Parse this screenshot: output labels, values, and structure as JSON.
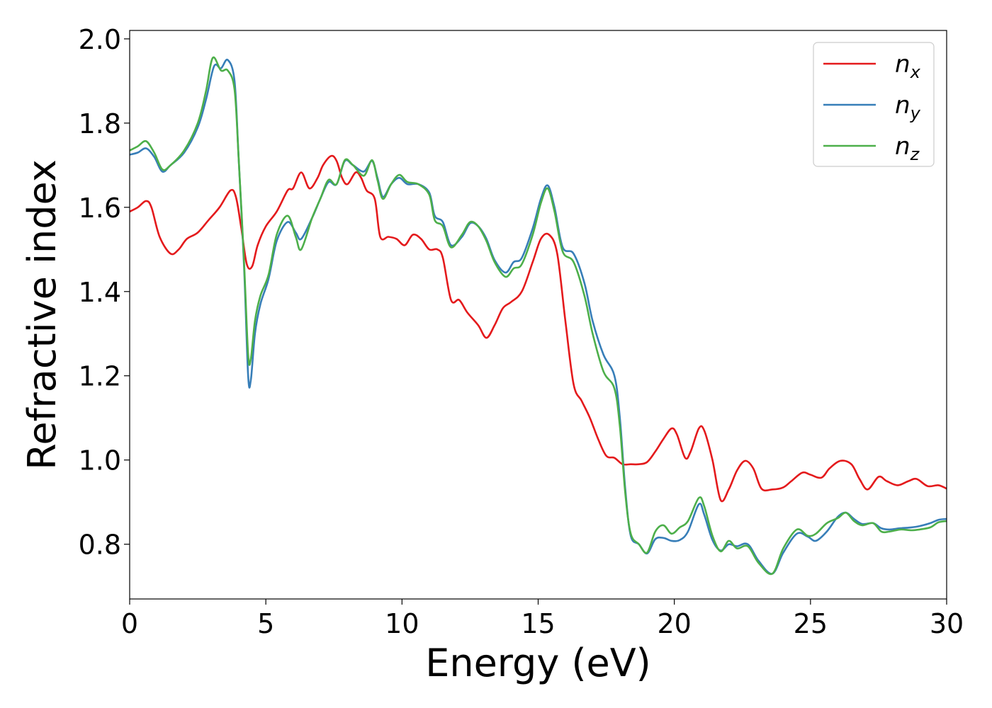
{
  "chart_data": {
    "type": "line",
    "xlabel": "Energy (eV)",
    "ylabel": "Refractive index",
    "xlim": [
      0,
      30
    ],
    "ylim": [
      0.67,
      2.02
    ],
    "xticks": [
      0,
      5,
      10,
      15,
      20,
      25,
      30
    ],
    "xtick_labels": [
      "0",
      "5",
      "10",
      "15",
      "20",
      "25",
      "30"
    ],
    "yticks": [
      0.8,
      1.0,
      1.2,
      1.4,
      1.6,
      1.8,
      2.0
    ],
    "ytick_labels": [
      "0.8",
      "1.0",
      "1.2",
      "1.4",
      "1.6",
      "1.8",
      "2.0"
    ],
    "grid": false,
    "legend_position": "top-right",
    "series": [
      {
        "name": "n_x",
        "symbol": "n",
        "subscript": "x",
        "color": "#e41a1c",
        "points": [
          [
            0,
            1.59
          ],
          [
            0.3,
            1.6
          ],
          [
            0.6,
            1.615
          ],
          [
            0.8,
            1.6
          ],
          [
            1.1,
            1.53
          ],
          [
            1.5,
            1.49
          ],
          [
            1.8,
            1.5
          ],
          [
            2.1,
            1.525
          ],
          [
            2.5,
            1.54
          ],
          [
            2.9,
            1.57
          ],
          [
            3.3,
            1.6
          ],
          [
            3.7,
            1.64
          ],
          [
            3.9,
            1.625
          ],
          [
            4.1,
            1.55
          ],
          [
            4.3,
            1.465
          ],
          [
            4.5,
            1.46
          ],
          [
            4.7,
            1.51
          ],
          [
            5.0,
            1.555
          ],
          [
            5.4,
            1.59
          ],
          [
            5.8,
            1.64
          ],
          [
            6.0,
            1.645
          ],
          [
            6.3,
            1.683
          ],
          [
            6.6,
            1.645
          ],
          [
            6.9,
            1.67
          ],
          [
            7.1,
            1.7
          ],
          [
            7.4,
            1.722
          ],
          [
            7.6,
            1.71
          ],
          [
            7.8,
            1.67
          ],
          [
            8.0,
            1.655
          ],
          [
            8.3,
            1.683
          ],
          [
            8.5,
            1.67
          ],
          [
            8.7,
            1.64
          ],
          [
            9.0,
            1.62
          ],
          [
            9.2,
            1.53
          ],
          [
            9.5,
            1.53
          ],
          [
            9.8,
            1.525
          ],
          [
            10.1,
            1.51
          ],
          [
            10.4,
            1.535
          ],
          [
            10.7,
            1.525
          ],
          [
            11.0,
            1.5
          ],
          [
            11.3,
            1.5
          ],
          [
            11.5,
            1.48
          ],
          [
            11.8,
            1.38
          ],
          [
            12.1,
            1.38
          ],
          [
            12.4,
            1.35
          ],
          [
            12.8,
            1.32
          ],
          [
            13.1,
            1.29
          ],
          [
            13.4,
            1.32
          ],
          [
            13.7,
            1.36
          ],
          [
            14.0,
            1.375
          ],
          [
            14.4,
            1.4
          ],
          [
            14.8,
            1.47
          ],
          [
            15.1,
            1.525
          ],
          [
            15.4,
            1.535
          ],
          [
            15.7,
            1.49
          ],
          [
            16.0,
            1.33
          ],
          [
            16.3,
            1.18
          ],
          [
            16.6,
            1.14
          ],
          [
            16.9,
            1.1
          ],
          [
            17.2,
            1.05
          ],
          [
            17.5,
            1.01
          ],
          [
            17.8,
            1.005
          ],
          [
            18.1,
            0.99
          ],
          [
            18.4,
            0.99
          ],
          [
            18.7,
            0.99
          ],
          [
            19.0,
            0.995
          ],
          [
            19.3,
            1.02
          ],
          [
            19.6,
            1.05
          ],
          [
            19.9,
            1.075
          ],
          [
            20.1,
            1.06
          ],
          [
            20.4,
            1.005
          ],
          [
            20.6,
            1.02
          ],
          [
            20.9,
            1.075
          ],
          [
            21.1,
            1.07
          ],
          [
            21.4,
            1.0
          ],
          [
            21.7,
            0.905
          ],
          [
            22.0,
            0.93
          ],
          [
            22.3,
            0.975
          ],
          [
            22.6,
            0.998
          ],
          [
            22.9,
            0.98
          ],
          [
            23.2,
            0.932
          ],
          [
            23.6,
            0.93
          ],
          [
            24.0,
            0.935
          ],
          [
            24.3,
            0.95
          ],
          [
            24.7,
            0.97
          ],
          [
            25.0,
            0.965
          ],
          [
            25.4,
            0.958
          ],
          [
            25.7,
            0.98
          ],
          [
            26.1,
            0.998
          ],
          [
            26.5,
            0.99
          ],
          [
            26.8,
            0.955
          ],
          [
            27.1,
            0.93
          ],
          [
            27.5,
            0.96
          ],
          [
            27.8,
            0.95
          ],
          [
            28.2,
            0.94
          ],
          [
            28.6,
            0.95
          ],
          [
            28.9,
            0.955
          ],
          [
            29.3,
            0.938
          ],
          [
            29.7,
            0.94
          ],
          [
            30,
            0.932
          ]
        ]
      },
      {
        "name": "n_y",
        "symbol": "n",
        "subscript": "y",
        "color": "#377eb8",
        "points": [
          [
            0,
            1.725
          ],
          [
            0.3,
            1.73
          ],
          [
            0.6,
            1.74
          ],
          [
            0.9,
            1.72
          ],
          [
            1.2,
            1.685
          ],
          [
            1.5,
            1.7
          ],
          [
            2.0,
            1.73
          ],
          [
            2.5,
            1.79
          ],
          [
            2.8,
            1.855
          ],
          [
            3.1,
            1.935
          ],
          [
            3.35,
            1.93
          ],
          [
            3.6,
            1.95
          ],
          [
            3.85,
            1.9
          ],
          [
            4.0,
            1.72
          ],
          [
            4.2,
            1.46
          ],
          [
            4.35,
            1.2
          ],
          [
            4.45,
            1.19
          ],
          [
            4.6,
            1.3
          ],
          [
            4.8,
            1.37
          ],
          [
            5.1,
            1.43
          ],
          [
            5.4,
            1.52
          ],
          [
            5.8,
            1.565
          ],
          [
            6.1,
            1.54
          ],
          [
            6.3,
            1.525
          ],
          [
            6.7,
            1.575
          ],
          [
            7.0,
            1.62
          ],
          [
            7.3,
            1.66
          ],
          [
            7.6,
            1.655
          ],
          [
            7.9,
            1.71
          ],
          [
            8.2,
            1.7
          ],
          [
            8.6,
            1.685
          ],
          [
            8.9,
            1.71
          ],
          [
            9.1,
            1.67
          ],
          [
            9.3,
            1.625
          ],
          [
            9.6,
            1.655
          ],
          [
            9.9,
            1.67
          ],
          [
            10.2,
            1.655
          ],
          [
            10.6,
            1.655
          ],
          [
            11.0,
            1.635
          ],
          [
            11.2,
            1.58
          ],
          [
            11.5,
            1.565
          ],
          [
            11.8,
            1.51
          ],
          [
            12.2,
            1.53
          ],
          [
            12.5,
            1.562
          ],
          [
            12.8,
            1.555
          ],
          [
            13.1,
            1.525
          ],
          [
            13.4,
            1.475
          ],
          [
            13.8,
            1.445
          ],
          [
            14.1,
            1.47
          ],
          [
            14.4,
            1.48
          ],
          [
            14.8,
            1.55
          ],
          [
            15.1,
            1.62
          ],
          [
            15.35,
            1.652
          ],
          [
            15.6,
            1.6
          ],
          [
            15.9,
            1.505
          ],
          [
            16.3,
            1.49
          ],
          [
            16.7,
            1.42
          ],
          [
            17.0,
            1.33
          ],
          [
            17.4,
            1.25
          ],
          [
            17.8,
            1.2
          ],
          [
            18.0,
            1.1
          ],
          [
            18.2,
            0.93
          ],
          [
            18.4,
            0.82
          ],
          [
            18.7,
            0.8
          ],
          [
            19.0,
            0.778
          ],
          [
            19.3,
            0.812
          ],
          [
            19.6,
            0.815
          ],
          [
            19.9,
            0.808
          ],
          [
            20.2,
            0.81
          ],
          [
            20.5,
            0.83
          ],
          [
            20.9,
            0.895
          ],
          [
            21.1,
            0.87
          ],
          [
            21.4,
            0.81
          ],
          [
            21.7,
            0.785
          ],
          [
            22.0,
            0.8
          ],
          [
            22.3,
            0.795
          ],
          [
            22.7,
            0.8
          ],
          [
            23.1,
            0.76
          ],
          [
            23.6,
            0.73
          ],
          [
            24.0,
            0.78
          ],
          [
            24.5,
            0.825
          ],
          [
            24.9,
            0.818
          ],
          [
            25.2,
            0.808
          ],
          [
            25.6,
            0.83
          ],
          [
            26.0,
            0.865
          ],
          [
            26.3,
            0.875
          ],
          [
            26.6,
            0.86
          ],
          [
            26.9,
            0.848
          ],
          [
            27.3,
            0.85
          ],
          [
            27.6,
            0.838
          ],
          [
            27.9,
            0.835
          ],
          [
            28.3,
            0.838
          ],
          [
            28.7,
            0.84
          ],
          [
            29.0,
            0.843
          ],
          [
            29.4,
            0.85
          ],
          [
            29.7,
            0.858
          ],
          [
            30,
            0.86
          ]
        ]
      },
      {
        "name": "n_z",
        "symbol": "n",
        "subscript": "z",
        "color": "#4daf4a",
        "points": [
          [
            0,
            1.735
          ],
          [
            0.3,
            1.745
          ],
          [
            0.6,
            1.757
          ],
          [
            0.9,
            1.73
          ],
          [
            1.2,
            1.69
          ],
          [
            1.5,
            1.7
          ],
          [
            2.0,
            1.735
          ],
          [
            2.5,
            1.8
          ],
          [
            2.8,
            1.875
          ],
          [
            3.05,
            1.955
          ],
          [
            3.35,
            1.925
          ],
          [
            3.6,
            1.925
          ],
          [
            3.85,
            1.88
          ],
          [
            4.0,
            1.72
          ],
          [
            4.2,
            1.47
          ],
          [
            4.35,
            1.25
          ],
          [
            4.45,
            1.24
          ],
          [
            4.6,
            1.33
          ],
          [
            4.8,
            1.39
          ],
          [
            5.1,
            1.44
          ],
          [
            5.4,
            1.535
          ],
          [
            5.8,
            1.58
          ],
          [
            6.1,
            1.53
          ],
          [
            6.3,
            1.5
          ],
          [
            6.7,
            1.575
          ],
          [
            7.0,
            1.62
          ],
          [
            7.3,
            1.665
          ],
          [
            7.6,
            1.655
          ],
          [
            7.9,
            1.712
          ],
          [
            8.2,
            1.7
          ],
          [
            8.6,
            1.675
          ],
          [
            8.9,
            1.712
          ],
          [
            9.1,
            1.665
          ],
          [
            9.3,
            1.62
          ],
          [
            9.6,
            1.655
          ],
          [
            9.9,
            1.677
          ],
          [
            10.2,
            1.66
          ],
          [
            10.6,
            1.655
          ],
          [
            11.0,
            1.63
          ],
          [
            11.2,
            1.57
          ],
          [
            11.5,
            1.555
          ],
          [
            11.8,
            1.505
          ],
          [
            12.2,
            1.535
          ],
          [
            12.5,
            1.565
          ],
          [
            12.8,
            1.555
          ],
          [
            13.1,
            1.52
          ],
          [
            13.4,
            1.47
          ],
          [
            13.8,
            1.435
          ],
          [
            14.1,
            1.455
          ],
          [
            14.4,
            1.465
          ],
          [
            14.8,
            1.535
          ],
          [
            15.1,
            1.61
          ],
          [
            15.35,
            1.645
          ],
          [
            15.6,
            1.59
          ],
          [
            15.9,
            1.495
          ],
          [
            16.3,
            1.47
          ],
          [
            16.7,
            1.39
          ],
          [
            17.0,
            1.3
          ],
          [
            17.4,
            1.21
          ],
          [
            17.8,
            1.17
          ],
          [
            18.0,
            1.08
          ],
          [
            18.2,
            0.92
          ],
          [
            18.4,
            0.825
          ],
          [
            18.7,
            0.8
          ],
          [
            19.0,
            0.78
          ],
          [
            19.3,
            0.83
          ],
          [
            19.6,
            0.845
          ],
          [
            19.9,
            0.825
          ],
          [
            20.2,
            0.84
          ],
          [
            20.5,
            0.855
          ],
          [
            20.9,
            0.91
          ],
          [
            21.1,
            0.89
          ],
          [
            21.4,
            0.82
          ],
          [
            21.7,
            0.783
          ],
          [
            22.0,
            0.808
          ],
          [
            22.3,
            0.79
          ],
          [
            22.7,
            0.795
          ],
          [
            23.1,
            0.755
          ],
          [
            23.6,
            0.73
          ],
          [
            24.0,
            0.79
          ],
          [
            24.5,
            0.835
          ],
          [
            24.9,
            0.82
          ],
          [
            25.2,
            0.825
          ],
          [
            25.6,
            0.85
          ],
          [
            26.0,
            0.862
          ],
          [
            26.3,
            0.875
          ],
          [
            26.6,
            0.855
          ],
          [
            26.9,
            0.845
          ],
          [
            27.3,
            0.85
          ],
          [
            27.6,
            0.83
          ],
          [
            27.9,
            0.83
          ],
          [
            28.3,
            0.835
          ],
          [
            28.7,
            0.833
          ],
          [
            29.0,
            0.835
          ],
          [
            29.4,
            0.84
          ],
          [
            29.7,
            0.852
          ],
          [
            30,
            0.855
          ]
        ]
      }
    ]
  }
}
